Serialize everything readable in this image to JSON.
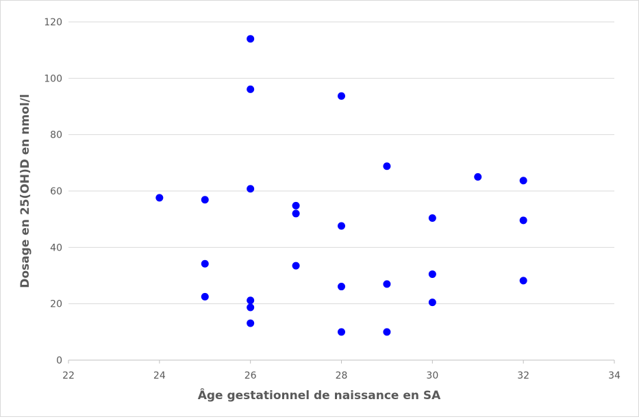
{
  "chart_data": {
    "type": "scatter",
    "title": "",
    "xlabel": "Âge gestationnel de naissance en SA",
    "ylabel": "Dosage en 25(OH)D en nmol/l",
    "xlim": [
      22,
      34
    ],
    "ylim": [
      0,
      120
    ],
    "xticks": [
      22,
      24,
      26,
      28,
      30,
      32,
      34
    ],
    "yticks": [
      0,
      20,
      40,
      60,
      80,
      100,
      120
    ],
    "grid": "horizontal",
    "legend": "none",
    "marker_color": "#0000ff",
    "series": [
      {
        "points": [
          {
            "x": 24,
            "y": 57.6
          },
          {
            "x": 25,
            "y": 56.9
          },
          {
            "x": 25,
            "y": 34.2
          },
          {
            "x": 25,
            "y": 22.5
          },
          {
            "x": 26,
            "y": 114
          },
          {
            "x": 26,
            "y": 96.1
          },
          {
            "x": 26,
            "y": 60.8
          },
          {
            "x": 26,
            "y": 21.2
          },
          {
            "x": 26,
            "y": 18.7
          },
          {
            "x": 26,
            "y": 13.1
          },
          {
            "x": 27,
            "y": 54.8
          },
          {
            "x": 27,
            "y": 52
          },
          {
            "x": 27,
            "y": 33.5
          },
          {
            "x": 28,
            "y": 93.7
          },
          {
            "x": 28,
            "y": 47.6
          },
          {
            "x": 28,
            "y": 26.1
          },
          {
            "x": 28,
            "y": 10
          },
          {
            "x": 29,
            "y": 68.8
          },
          {
            "x": 29,
            "y": 27
          },
          {
            "x": 29,
            "y": 10
          },
          {
            "x": 30,
            "y": 50.4
          },
          {
            "x": 30,
            "y": 30.5
          },
          {
            "x": 30,
            "y": 20.5
          },
          {
            "x": 31,
            "y": 65
          },
          {
            "x": 32,
            "y": 63.7
          },
          {
            "x": 32,
            "y": 49.6
          },
          {
            "x": 32,
            "y": 28.2
          }
        ]
      }
    ]
  }
}
